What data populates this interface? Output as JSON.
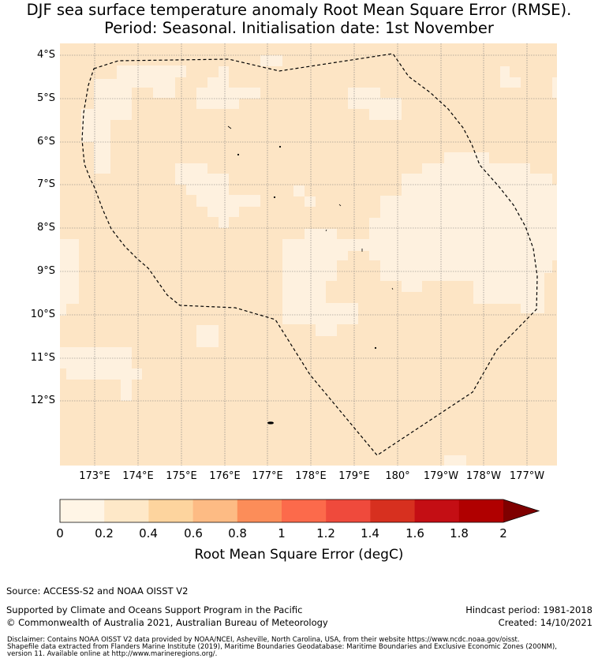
{
  "title": {
    "line1": "DJF sea surface temperature anomaly Root Mean Square Error (RMSE).",
    "line2": "Period: Seasonal. Initialisation date: 1st November"
  },
  "map": {
    "background_color": "#fde5c5",
    "patch_color": "#fef1df",
    "lat_labels": [
      "4°S",
      "5°S",
      "6°S",
      "7°S",
      "8°S",
      "9°S",
      "10°S",
      "11°S",
      "12°S"
    ],
    "lon_labels": [
      "173°E",
      "174°E",
      "175°E",
      "176°E",
      "177°E",
      "178°E",
      "179°E",
      "180°",
      "179°W",
      "178°W",
      "177°W"
    ]
  },
  "colorbar": {
    "colors": [
      "#fff5e6",
      "#fee8c8",
      "#fdd49e",
      "#fdbb84",
      "#fc8d59",
      "#fc6a4b",
      "#ef4a3c",
      "#d7301f",
      "#c40e14",
      "#b00000",
      "#7f0000"
    ],
    "ticks": [
      "0",
      "0.2",
      "0.4",
      "0.6",
      "0.8",
      "1",
      "1.2",
      "1.4",
      "1.6",
      "1.8",
      "2"
    ],
    "label": "Root Mean Square Error (degC)"
  },
  "footer": {
    "source": "Source: ACCESS-S2 and NOAA OISST V2",
    "support": "Supported by Climate and Oceans Support Program in the Pacific",
    "copyright": "© Commonwealth of Australia 2021, Australian Bureau of Meteorology",
    "hindcast": "Hindcast period: 1981-2018",
    "created": "Created: 14/10/2021",
    "disclaimer1": "Disclaimer: Contains NOAA OISST V2 data provided by NOAA/NCEI, Asheville, North Carolina, USA, from their website https://www.ncdc.noaa.gov/oisst.",
    "disclaimer2": "Shapefile data extracted from Flanders Marine Institute (2019), Maritime Boundaries Geodatabase: Maritime Boundaries and Exclusive Economic Zones (200NM),",
    "disclaimer3": "version 11. Available online at http://www.marineregions.org/."
  }
}
